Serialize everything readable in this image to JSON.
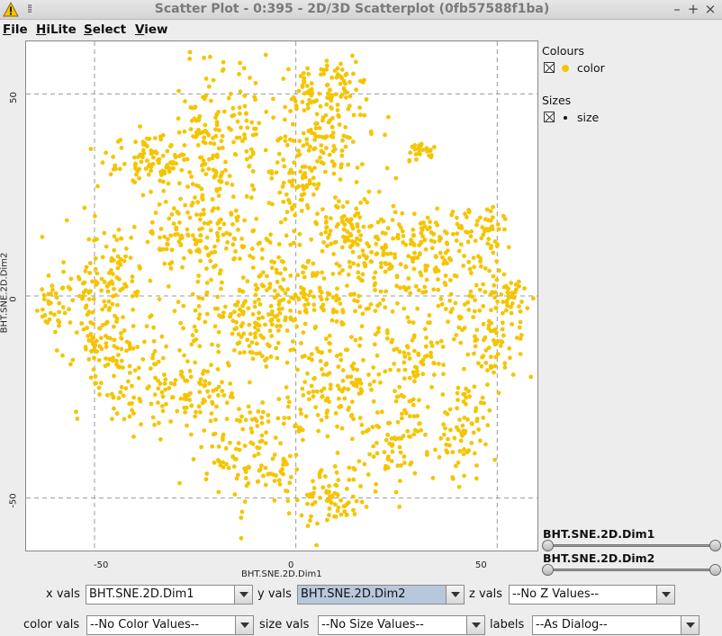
{
  "window": {
    "title": "Scatter Plot - 0:395 - 2D/3D Scatterplot (0fb57588f1ba)",
    "controls": {
      "minimize": "–",
      "maximize": "+",
      "close": "×"
    }
  },
  "menubar": [
    {
      "mnemonic": "F",
      "rest": "ile"
    },
    {
      "mnemonic": "H",
      "rest": "iLite"
    },
    {
      "mnemonic": "S",
      "rest": "elect"
    },
    {
      "mnemonic": "V",
      "rest": "iew"
    }
  ],
  "colors": {
    "point": "#f5c400",
    "grid": "#9a9a9a"
  },
  "legend": {
    "colours_title": "Colours",
    "colours_item": "color",
    "sizes_title": "Sizes",
    "sizes_item": "size"
  },
  "sliders": [
    {
      "label": "BHT.SNE.2D.Dim1"
    },
    {
      "label": "BHT.SNE.2D.Dim2"
    }
  ],
  "controls": {
    "xvals_label": "x vals",
    "xvals_value": "BHT.SNE.2D.Dim1",
    "yvals_label": "y vals",
    "yvals_value": "BHT.SNE.2D.Dim2",
    "zvals_label": "z vals",
    "zvals_value": "--No Z Values--",
    "colorvals_label": "color vals",
    "colorvals_value": "--No Color Values--",
    "sizevals_label": "size vals",
    "sizevals_value": "--No Size Values--",
    "labels_label": "labels",
    "labels_value": "--As Dialog--"
  },
  "chart_data": {
    "type": "scatter",
    "xlabel": "BHT.SNE.2D.Dim1",
    "ylabel": "BHT.SNE.2D.Dim2",
    "xlim": [
      -67,
      60
    ],
    "ylim": [
      -63,
      63
    ],
    "xticks": [
      "-50",
      "0",
      "50"
    ],
    "xtick_values": [
      -50,
      0,
      50
    ],
    "yticks": [
      "50",
      "0",
      "-50"
    ],
    "ytick_values": [
      50,
      0,
      -50
    ],
    "grid": true,
    "series": [
      {
        "clusters": [
          {
            "x": 0,
            "y": 0,
            "sx": 10,
            "sy": 8,
            "n": 160
          },
          {
            "x": 5,
            "y": 40,
            "sx": 8,
            "sy": 12,
            "n": 200
          },
          {
            "x": -36,
            "y": 33,
            "sx": 6,
            "sy": 4,
            "n": 90
          },
          {
            "x": -22,
            "y": 38,
            "sx": 5,
            "sy": 12,
            "n": 120
          },
          {
            "x": -13,
            "y": 42,
            "sx": 3,
            "sy": 9,
            "n": 40
          },
          {
            "x": 31,
            "y": 36,
            "sx": 2,
            "sy": 2,
            "n": 25
          },
          {
            "x": -48,
            "y": 5,
            "sx": 7,
            "sy": 8,
            "n": 110
          },
          {
            "x": -61,
            "y": -3,
            "sx": 2,
            "sy": 4,
            "n": 30
          },
          {
            "x": -43,
            "y": -18,
            "sx": 7,
            "sy": 8,
            "n": 110
          },
          {
            "x": -28,
            "y": -24,
            "sx": 8,
            "sy": 5,
            "n": 80
          },
          {
            "x": -22,
            "y": 15,
            "sx": 9,
            "sy": 7,
            "n": 150
          },
          {
            "x": -15,
            "y": -8,
            "sx": 10,
            "sy": 7,
            "n": 120
          },
          {
            "x": 19,
            "y": 10,
            "sx": 9,
            "sy": 9,
            "n": 140
          },
          {
            "x": 12,
            "y": -22,
            "sx": 10,
            "sy": 9,
            "n": 160
          },
          {
            "x": -12,
            "y": -38,
            "sx": 8,
            "sy": 10,
            "n": 130
          },
          {
            "x": 7,
            "y": -50,
            "sx": 6,
            "sy": 5,
            "n": 80
          },
          {
            "x": 39,
            "y": 5,
            "sx": 8,
            "sy": 8,
            "n": 110
          },
          {
            "x": 42,
            "y": -32,
            "sx": 4,
            "sy": 7,
            "n": 80
          },
          {
            "x": 49,
            "y": -10,
            "sx": 5,
            "sy": 7,
            "n": 70
          },
          {
            "x": 53,
            "y": 0,
            "sx": 3,
            "sy": 3,
            "n": 40
          },
          {
            "x": 46,
            "y": 18,
            "sx": 5,
            "sy": 3,
            "n": 45
          },
          {
            "x": 30,
            "y": -16,
            "sx": 5,
            "sy": 6,
            "n": 60
          },
          {
            "x": 23,
            "y": -38,
            "sx": 6,
            "sy": 7,
            "n": 70
          },
          {
            "x": 31,
            "y": 15,
            "sx": 4,
            "sy": 4,
            "n": 40
          },
          {
            "x": 10,
            "y": 52,
            "sx": 4,
            "sy": 4,
            "n": 40
          },
          {
            "x": 0,
            "y": 25,
            "sx": 4,
            "sy": 6,
            "n": 40
          },
          {
            "x": 12,
            "y": 18,
            "sx": 4,
            "sy": 4,
            "n": 40
          },
          {
            "x": -50,
            "y": -10,
            "sx": 3,
            "sy": 5,
            "n": 30
          }
        ]
      }
    ]
  }
}
